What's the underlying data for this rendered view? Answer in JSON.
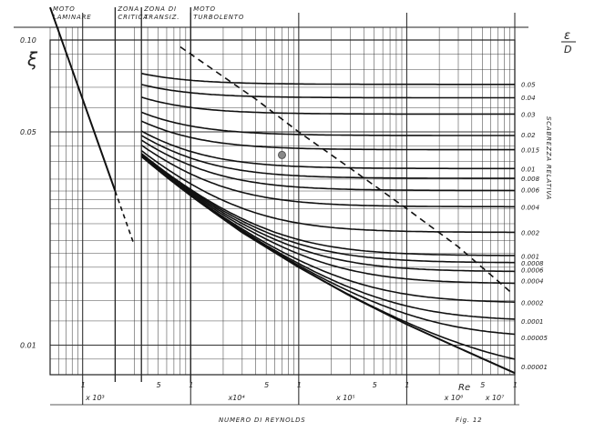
{
  "chart_data": {
    "type": "line",
    "title": "",
    "xlabel": "NUMERO DI REYNOLDS",
    "ylabel": "ξ",
    "y2label": "SCABREZZA RELATIVA",
    "y2symbol_top": "ε",
    "y2symbol_bottom": "D",
    "figure_label": "Fig. 12",
    "re_label": "Re",
    "x_scale": "log",
    "y_scale": "log",
    "xlim": [
      500,
      10000000
    ],
    "ylim": [
      0.008,
      0.1
    ],
    "grid": true,
    "y_ticks": [
      {
        "value": 0.1,
        "label": "0.10"
      },
      {
        "value": 0.05,
        "label": "0.05"
      },
      {
        "value": 0.01,
        "label": "0.01"
      }
    ],
    "x_tick_labels": [
      {
        "value": 1000,
        "label": "1"
      },
      {
        "value": 5000,
        "label": "5"
      },
      {
        "value": 10000,
        "label": "1"
      },
      {
        "value": 50000,
        "label": "5"
      },
      {
        "value": 100000,
        "label": "1"
      },
      {
        "value": 500000,
        "label": "5"
      },
      {
        "value": 1000000,
        "label": "1"
      },
      {
        "value": 5000000,
        "label": "5"
      },
      {
        "value": 10000000,
        "label": "1"
      }
    ],
    "decade_labels": [
      {
        "value": 1200,
        "label": "x 10³"
      },
      {
        "value": 25000,
        "label": "x10⁴"
      },
      {
        "value": 250000,
        "label": "x 10⁵"
      },
      {
        "value": 2500000,
        "label": "x 10⁶"
      },
      {
        "value": 6000000,
        "label": "x 10⁷"
      }
    ],
    "zones": [
      {
        "label_lines": [
          "MOTO",
          "LAMINARE"
        ],
        "x_start": 500,
        "x_end": 2000
      },
      {
        "label_lines": [
          "ZONA",
          "CRITICA"
        ],
        "x_start": 2000,
        "x_end": 3500
      },
      {
        "label_lines": [
          "ZONA DI",
          "TRANSIZ."
        ],
        "x_start": 3500,
        "x_end": 10000
      },
      {
        "label_lines": [
          "MOTO",
          "TURBOLENTO"
        ],
        "x_start": 10000,
        "x_end": 10000000
      }
    ],
    "laminar": {
      "name": "",
      "x": [
        500,
        2000
      ],
      "y": [
        0.128,
        0.032
      ]
    },
    "laminar_extension": {
      "x": [
        2000,
        3000
      ],
      "y": [
        0.032,
        0.0213
      ]
    },
    "complete_turbulence_boundary": {
      "x": [
        8000,
        40000,
        100000,
        300000,
        1000000,
        3000000,
        9000000
      ],
      "y": [
        0.095,
        0.064,
        0.05,
        0.038,
        0.028,
        0.021,
        0.015
      ]
    },
    "smooth_pipe": {
      "x": [
        3500,
        5000,
        10000,
        30000,
        100000,
        300000,
        1000000,
        3000000,
        10000000
      ],
      "y": [
        0.0415,
        0.0378,
        0.0309,
        0.0234,
        0.018,
        0.0145,
        0.0117,
        0.0098,
        0.0081
      ]
    },
    "example_point": {
      "x": 70000,
      "y": 0.042
    },
    "series": [
      {
        "roughness": 0.05,
        "label": "0.05",
        "f_rough": 0.0716
      },
      {
        "roughness": 0.04,
        "label": "0.04",
        "f_rough": 0.065
      },
      {
        "roughness": 0.03,
        "label": "0.03",
        "f_rough": 0.0572
      },
      {
        "roughness": 0.02,
        "label": "0.02",
        "f_rough": 0.049
      },
      {
        "roughness": 0.015,
        "label": "0.015",
        "f_rough": 0.0438
      },
      {
        "roughness": 0.01,
        "label": "0.01",
        "f_rough": 0.0379
      },
      {
        "roughness": 0.008,
        "label": "0.008",
        "f_rough": 0.0352
      },
      {
        "roughness": 0.006,
        "label": "0.006",
        "f_rough": 0.0323
      },
      {
        "roughness": 0.004,
        "label": "0.004",
        "f_rough": 0.0284
      },
      {
        "roughness": 0.002,
        "label": "0.002",
        "f_rough": 0.0234
      },
      {
        "roughness": 0.001,
        "label": "0.001",
        "f_rough": 0.0196
      },
      {
        "roughness": 0.0008,
        "label": "0.0008",
        "f_rough": 0.0186
      },
      {
        "roughness": 0.0006,
        "label": "0.0006",
        "f_rough": 0.0177
      },
      {
        "roughness": 0.0004,
        "label": "0.0004",
        "f_rough": 0.0163
      },
      {
        "roughness": 0.0002,
        "label": "0.0002",
        "f_rough": 0.0138
      },
      {
        "roughness": 0.0001,
        "label": "0.0001",
        "f_rough": 0.012
      },
      {
        "roughness": 5e-05,
        "label": "0.00005",
        "f_rough": 0.0106
      },
      {
        "roughness": 1e-05,
        "label": "0.00001",
        "f_rough": 0.0085
      }
    ]
  }
}
